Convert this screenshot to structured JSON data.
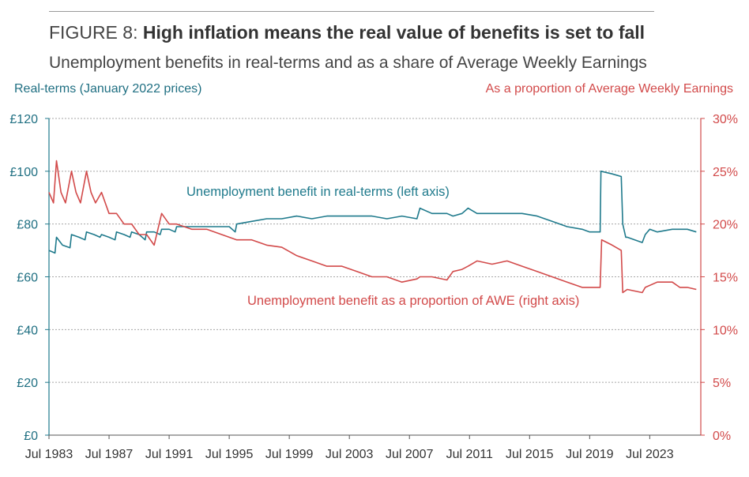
{
  "figure": {
    "prefix": "FIGURE 8:",
    "title": "High inflation means the real value of benefits is set to fall",
    "subtitle": "Unemployment benefits in real-terms and as a share of Average Weekly Earnings"
  },
  "chart_data": {
    "type": "line",
    "xlim": [
      1983.5,
      2026.9
    ],
    "left_axis": {
      "title": "Real-terms (January 2022 prices)",
      "ylim": [
        0,
        120
      ],
      "ticks": [
        0,
        20,
        40,
        60,
        80,
        100,
        120
      ],
      "tick_labels": [
        "£0",
        "£20",
        "£40",
        "£60",
        "£80",
        "£100",
        "£120"
      ],
      "color": "#1f7a8c"
    },
    "right_axis": {
      "title": "As a proportion of Average Weekly Earnings",
      "ylim": [
        0,
        30
      ],
      "ticks": [
        0,
        5,
        10,
        15,
        20,
        25,
        30
      ],
      "tick_labels": [
        "0%",
        "5%",
        "10%",
        "15%",
        "20%",
        "25%",
        "30%"
      ],
      "color": "#d24a4a"
    },
    "x_ticks": [
      1983.5,
      1987.5,
      1991.5,
      1995.5,
      1999.5,
      2003.5,
      2007.5,
      2011.5,
      2015.5,
      2019.5,
      2023.5
    ],
    "x_tick_labels": [
      "Jul 1983",
      "Jul 1987",
      "Jul 1991",
      "Jul 1995",
      "Jul 1999",
      "Jul 2003",
      "Jul 2007",
      "Jul 2011",
      "Jul 2015",
      "Jul 2019",
      "Jul 2023"
    ],
    "grid": "horizontal-dashed",
    "series": [
      {
        "name": "Unemployment benefit in real-terms (left axis)",
        "axis": "left",
        "color": "#1f7a8c",
        "x": [
          1983.5,
          1983.9,
          1984.0,
          1984.4,
          1984.9,
          1985.0,
          1985.5,
          1985.9,
          1986.0,
          1986.5,
          1986.9,
          1987.0,
          1987.5,
          1987.9,
          1988.0,
          1988.5,
          1988.9,
          1989.0,
          1989.5,
          1989.9,
          1990.0,
          1990.5,
          1990.9,
          1991.0,
          1991.5,
          1991.9,
          1992.0,
          1993.0,
          1994.0,
          1995.0,
          1995.5,
          1995.9,
          1996.0,
          1997.0,
          1998.0,
          1999.0,
          2000.0,
          2001.0,
          2002.0,
          2003.0,
          2004.0,
          2005.0,
          2006.0,
          2007.0,
          2008.0,
          2008.2,
          2009.0,
          2010.0,
          2010.4,
          2011.0,
          2011.4,
          2012.0,
          2013.0,
          2014.0,
          2015.0,
          2016.0,
          2017.0,
          2018.0,
          2019.0,
          2019.5,
          2020.2,
          2020.25,
          2021.0,
          2021.6,
          2021.7,
          2021.9,
          2022.0,
          2022.5,
          2023.0,
          2023.2,
          2023.5,
          2024.0,
          2025.0,
          2026.0,
          2026.6
        ],
        "values": [
          70,
          69,
          75,
          72,
          71,
          76,
          75,
          74,
          77,
          76,
          75,
          76,
          75,
          74,
          77,
          76,
          75,
          77,
          76,
          74,
          77,
          77,
          76,
          78,
          78,
          77,
          79,
          79,
          79,
          79,
          79,
          77,
          80,
          81,
          82,
          82,
          83,
          82,
          83,
          83,
          83,
          83,
          82,
          83,
          82,
          86,
          84,
          84,
          83,
          84,
          86,
          84,
          84,
          84,
          84,
          83,
          81,
          79,
          78,
          77,
          77,
          100,
          99,
          98,
          80,
          75,
          75,
          74,
          73,
          76,
          78,
          77,
          78,
          78,
          77
        ]
      },
      {
        "name": "Unemployment benefit as a proportion of AWE (right axis)",
        "axis": "right",
        "color": "#d24a4a",
        "x": [
          1983.5,
          1983.8,
          1984.0,
          1984.3,
          1984.6,
          1985.0,
          1985.3,
          1985.6,
          1986.0,
          1986.3,
          1986.6,
          1987.0,
          1987.5,
          1988.0,
          1988.5,
          1989.0,
          1989.5,
          1990.0,
          1990.5,
          1991.0,
          1991.5,
          1992.0,
          1993.0,
          1994.0,
          1995.0,
          1996.0,
          1997.0,
          1998.0,
          1999.0,
          2000.0,
          2001.0,
          2002.0,
          2003.0,
          2004.0,
          2005.0,
          2006.0,
          2007.0,
          2008.0,
          2008.2,
          2009.0,
          2010.0,
          2010.4,
          2011.0,
          2011.4,
          2012.0,
          2013.0,
          2014.0,
          2015.0,
          2016.0,
          2017.0,
          2018.0,
          2019.0,
          2019.6,
          2020.2,
          2020.3,
          2021.0,
          2021.6,
          2021.7,
          2022.0,
          2023.0,
          2023.2,
          2024.0,
          2025.0,
          2025.5,
          2026.0,
          2026.6
        ],
        "values": [
          23,
          22,
          26,
          23,
          22,
          25,
          23,
          22,
          25,
          23,
          22,
          23,
          21,
          21,
          20,
          20,
          19,
          19,
          18,
          21,
          20,
          20,
          19.5,
          19.5,
          19,
          18.5,
          18.5,
          18,
          17.8,
          17,
          16.5,
          16,
          16,
          15.5,
          15,
          15,
          14.5,
          14.8,
          15,
          15,
          14.7,
          15.5,
          15.7,
          16,
          16.5,
          16.2,
          16.5,
          16,
          15.5,
          15,
          14.5,
          14,
          14,
          14,
          18.5,
          18,
          17.5,
          13.5,
          13.8,
          13.5,
          14,
          14.5,
          14.5,
          14,
          14,
          13.8
        ]
      }
    ],
    "annotations": [
      {
        "text": "Unemployment benefit in real-terms (left axis)",
        "color": "#1f7a8c"
      },
      {
        "text": "Unemployment benefit as a proportion of AWE (right axis)",
        "color": "#d24a4a"
      }
    ]
  }
}
